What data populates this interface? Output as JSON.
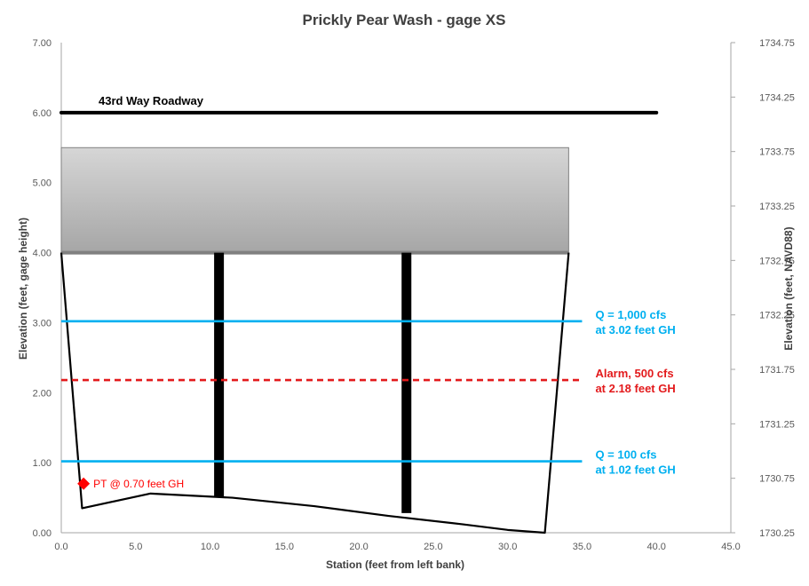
{
  "chart_data": {
    "type": "line",
    "title": "Prickly Pear Wash - gage XS",
    "xlabel": "Station (feet from left bank)",
    "ylabel": "Elevation  (feet, gage height)",
    "y2label": "Elevation  (feet, NAVD88)",
    "xlim": [
      0,
      45
    ],
    "ylim": [
      0,
      7
    ],
    "y2lim": [
      1730.25,
      1734.75
    ],
    "x_ticks": [
      "0.0",
      "5.0",
      "10.0",
      "15.0",
      "20.0",
      "25.0",
      "30.0",
      "35.0",
      "40.0",
      "45.0"
    ],
    "y_ticks": [
      "0.00",
      "1.00",
      "2.00",
      "3.00",
      "4.00",
      "5.00",
      "6.00",
      "7.00"
    ],
    "y2_ticks": [
      "1730.25",
      "1730.75",
      "1731.25",
      "1731.75",
      "1732.25",
      "1732.75",
      "1733.25",
      "1733.75",
      "1734.25",
      "1734.75"
    ],
    "grid": false,
    "colors": {
      "roadway": "#000000",
      "channel": "#000000",
      "deck_fill_top": "#d6d6d6",
      "deck_fill_bottom": "#a6a6a6",
      "deck_edge": "#808080",
      "q_lines": "#00b0f0",
      "alarm": "#e31a1c",
      "sensor": "#ff0000"
    },
    "roadway": {
      "x": [
        0,
        40
      ],
      "y": 6.0,
      "label": "43rd Way Roadway"
    },
    "bridge_deck": {
      "x": [
        0,
        34.1
      ],
      "bottom": 4.0,
      "top": 5.5
    },
    "piers": [
      {
        "x": 10.6,
        "y_top": 4.0,
        "y_bottom": 0.52
      },
      {
        "x": 23.2,
        "y_top": 4.0,
        "y_bottom": 0.28
      }
    ],
    "channel_section": {
      "x": [
        0,
        1.4,
        6.0,
        11.5,
        17.0,
        22.0,
        27.0,
        30.0,
        32.5,
        34.1
      ],
      "y": [
        4.0,
        0.35,
        0.56,
        0.5,
        0.38,
        0.24,
        0.12,
        0.04,
        0.0,
        4.0
      ]
    },
    "levels": [
      {
        "name": "Q = 1,000 cfs",
        "y": 3.02,
        "x": [
          0,
          35
        ],
        "style": "solid",
        "label": [
          "Q = 1,000  cfs",
          "at 3.02 feet GH"
        ]
      },
      {
        "name": "Alarm, 500 cfs",
        "y": 2.18,
        "x": [
          0,
          35
        ],
        "style": "dashed",
        "label": [
          "Alarm, 500  cfs",
          "at 2.18 feet GH"
        ]
      },
      {
        "name": "Q = 100 cfs",
        "y": 1.02,
        "x": [
          0,
          35
        ],
        "style": "solid",
        "label": [
          "Q = 100  cfs",
          "at 1.02 feet GH"
        ]
      }
    ],
    "sensor": {
      "x": 1.5,
      "y": 0.7,
      "label": "PT @ 0.70  feet GH"
    }
  }
}
